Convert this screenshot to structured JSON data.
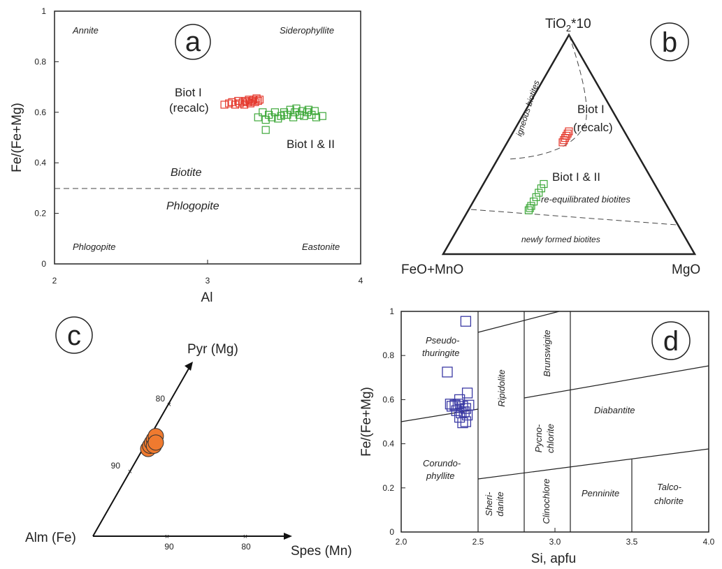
{
  "figure": {
    "panel_letters": [
      "a",
      "b",
      "c",
      "d"
    ]
  },
  "chart_data": [
    {
      "panel": "a",
      "type": "scatter",
      "xlabel": "Al",
      "ylabel": "Fe/(Fe+Mg)",
      "xlim": [
        2,
        4
      ],
      "ylim": [
        0,
        1
      ],
      "x_ticks": [
        "2",
        "3",
        "4"
      ],
      "y_ticks": [
        "0",
        "0.2",
        "0.4",
        "0.6",
        "0.8",
        "1"
      ],
      "corner_labels": [
        "Annite",
        "Siderophyllite",
        "Phlogopite",
        "Eastonite"
      ],
      "field_labels": [
        "Biotite",
        "Phlogopite"
      ],
      "divider_y": 0.3,
      "series_labels": {
        "biot1_line1": "Biot I",
        "biot1_line2": "(recalc)",
        "biot12": "Biot I & II"
      },
      "series": [
        {
          "color": "#e53a2e",
          "marker": "square-open",
          "x": [
            3.11,
            3.14,
            3.16,
            3.18,
            3.2,
            3.21,
            3.23,
            3.24,
            3.25,
            3.26,
            3.27,
            3.28,
            3.29,
            3.3,
            3.31,
            3.32,
            3.33,
            3.34
          ],
          "y": [
            0.63,
            0.635,
            0.64,
            0.63,
            0.645,
            0.635,
            0.64,
            0.63,
            0.645,
            0.64,
            0.65,
            0.635,
            0.645,
            0.65,
            0.64,
            0.655,
            0.645,
            0.65
          ]
        },
        {
          "color": "#3ea83a",
          "marker": "square-open",
          "x": [
            3.33,
            3.36,
            3.38,
            3.4,
            3.42,
            3.44,
            3.46,
            3.48,
            3.5,
            3.52,
            3.54,
            3.56,
            3.57,
            3.58,
            3.6,
            3.62,
            3.63,
            3.65,
            3.66,
            3.68,
            3.7,
            3.71,
            3.75,
            3.38,
            3.5
          ],
          "y": [
            0.58,
            0.6,
            0.57,
            0.59,
            0.58,
            0.6,
            0.575,
            0.585,
            0.6,
            0.59,
            0.61,
            0.58,
            0.6,
            0.615,
            0.59,
            0.605,
            0.585,
            0.6,
            0.61,
            0.59,
            0.605,
            0.58,
            0.585,
            0.53,
            0.59
          ]
        }
      ]
    },
    {
      "panel": "b",
      "type": "ternary",
      "apices": {
        "top_main": "TiO",
        "top_sub": "2",
        "top_tail": "*10",
        "left": "FeO+MnO",
        "right": "MgO"
      },
      "field_labels": [
        "igneous biotites",
        "re-equilibrated biotites",
        "newly formed biotites"
      ],
      "series_labels": {
        "biot1_line1": "Biot I",
        "biot1_line2": "(recalc)",
        "biot12": "Biot I & II"
      },
      "series": [
        {
          "color": "#e53a2e",
          "marker": "square-open",
          "points": [
            [
              0.56,
              0.22,
              0.22
            ],
            [
              0.55,
              0.23,
              0.22
            ],
            [
              0.54,
              0.24,
              0.22
            ],
            [
              0.53,
              0.25,
              0.22
            ],
            [
              0.52,
              0.26,
              0.22
            ],
            [
              0.51,
              0.27,
              0.22
            ]
          ]
        },
        {
          "color": "#3ea83a",
          "marker": "square-open",
          "points": [
            [
              0.32,
              0.44,
              0.24
            ],
            [
              0.3,
              0.46,
              0.24
            ],
            [
              0.28,
              0.48,
              0.24
            ],
            [
              0.26,
              0.5,
              0.24
            ],
            [
              0.24,
              0.52,
              0.24
            ],
            [
              0.22,
              0.54,
              0.24
            ],
            [
              0.21,
              0.55,
              0.24
            ],
            [
              0.2,
              0.56,
              0.24
            ]
          ]
        }
      ]
    },
    {
      "panel": "c",
      "type": "ternary",
      "apices": {
        "top": "Pyr (Mg)",
        "left": "Alm (Fe)",
        "right": "Spes (Mn)"
      },
      "axis_ticks": {
        "pyr_axis": [
          "90",
          "80"
        ],
        "spes_axis": [
          "90",
          "80"
        ]
      },
      "series": [
        {
          "color": "#ef7a2f",
          "marker": "circle-filled",
          "points": [
            [
              0.86,
              0.135,
              0.005
            ],
            [
              0.855,
              0.14,
              0.005
            ],
            [
              0.85,
              0.145,
              0.005
            ],
            [
              0.845,
              0.15,
              0.005
            ],
            [
              0.84,
              0.155,
              0.005
            ],
            [
              0.85,
              0.14,
              0.01
            ],
            [
              0.845,
              0.145,
              0.01
            ]
          ]
        }
      ]
    },
    {
      "panel": "d",
      "type": "scatter",
      "xlabel": "Si, apfu",
      "ylabel": "Fe/(Fe+Mg)",
      "xlim": [
        2.0,
        4.0
      ],
      "ylim": [
        0,
        1
      ],
      "x_ticks": [
        "2.0",
        "2.5",
        "3.0",
        "3.5",
        "4.0"
      ],
      "y_ticks": [
        "0",
        "0.2",
        "0.4",
        "0.6",
        "0.8",
        "1"
      ],
      "field_labels": {
        "pseudo_1": "Pseudo-",
        "pseudo_2": "thuringite",
        "corundo_1": "Corundo-",
        "corundo_2": "phyllite",
        "ripidolite": "Ripidolite",
        "brunswigite": "Brunswigite",
        "pycno_1": "Pycno-",
        "pycno_2": "chlorite",
        "diabantite": "Diabantite",
        "sheri_1": "Sheri-",
        "sheri_2": "danite",
        "clinochlore": "Clinochlore",
        "penninite": "Penninite",
        "talco_1": "Talco-",
        "talco_2": "chlorite"
      },
      "series": [
        {
          "color": "#3b3aa4",
          "marker": "square-open",
          "x": [
            2.42,
            2.3,
            2.32,
            2.35,
            2.37,
            2.4,
            2.42,
            2.44,
            2.36,
            2.39,
            2.41,
            2.43,
            2.33,
            2.38,
            2.42,
            2.4,
            2.43,
            2.38
          ],
          "y": [
            0.955,
            0.725,
            0.58,
            0.575,
            0.58,
            0.57,
            0.56,
            0.575,
            0.55,
            0.54,
            0.545,
            0.53,
            0.57,
            0.52,
            0.5,
            0.495,
            0.63,
            0.6
          ]
        }
      ]
    }
  ]
}
